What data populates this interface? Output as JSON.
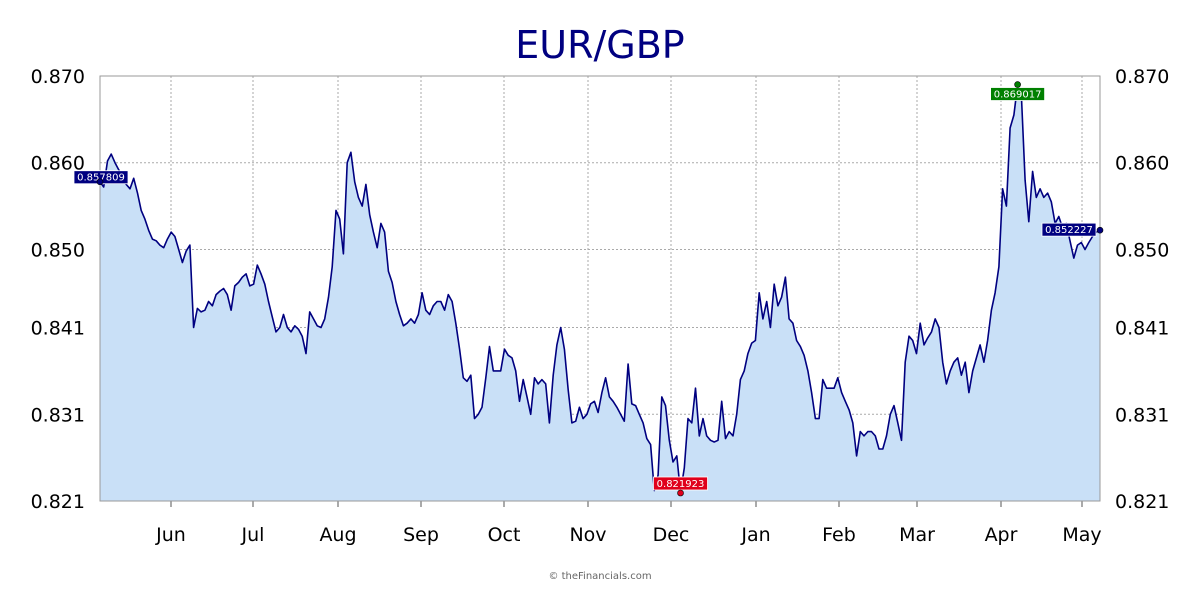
{
  "chart_data": {
    "type": "area",
    "title": "EUR/GBP",
    "xlabel": "",
    "ylabel": "",
    "x_tick_labels": [
      "Jun",
      "Jul",
      "Aug",
      "Sep",
      "Oct",
      "Nov",
      "Dec",
      "Jan",
      "Feb",
      "Mar",
      "Apr",
      "May"
    ],
    "y_tick_labels": [
      "0.870",
      "0.860",
      "0.850",
      "0.841",
      "0.831",
      "0.821"
    ],
    "y_ticks": [
      0.87,
      0.86,
      0.85,
      0.841,
      0.831,
      0.821
    ],
    "ylim": [
      0.821,
      0.87
    ],
    "grid": true,
    "y_axis_sides": "left and right",
    "series": [
      {
        "values": [
          0.8578,
          0.8572,
          0.8602,
          0.861,
          0.86,
          0.8592,
          0.8585,
          0.8575,
          0.857,
          0.8582,
          0.8565,
          0.8545,
          0.8535,
          0.8522,
          0.8512,
          0.851,
          0.8505,
          0.8502,
          0.8512,
          0.852,
          0.8515,
          0.85,
          0.8485,
          0.8498,
          0.8505,
          0.841,
          0.8432,
          0.8428,
          0.843,
          0.844,
          0.8435,
          0.8448,
          0.8452,
          0.8455,
          0.8448,
          0.843,
          0.8458,
          0.8462,
          0.8468,
          0.8472,
          0.8458,
          0.846,
          0.8482,
          0.8472,
          0.846,
          0.844,
          0.8422,
          0.8405,
          0.841,
          0.8425,
          0.841,
          0.8405,
          0.8412,
          0.8408,
          0.84,
          0.838,
          0.8428,
          0.842,
          0.8412,
          0.841,
          0.842,
          0.8445,
          0.848,
          0.8545,
          0.8535,
          0.8495,
          0.86,
          0.8612,
          0.8578,
          0.856,
          0.855,
          0.8575,
          0.854,
          0.852,
          0.8502,
          0.853,
          0.852,
          0.8475,
          0.8462,
          0.844,
          0.8425,
          0.8412,
          0.8415,
          0.842,
          0.8415,
          0.8425,
          0.845,
          0.843,
          0.8425,
          0.8435,
          0.844,
          0.844,
          0.843,
          0.8448,
          0.844,
          0.8415,
          0.8385,
          0.8352,
          0.8348,
          0.8355,
          0.8305,
          0.831,
          0.8318,
          0.8352,
          0.8388,
          0.836,
          0.836,
          0.836,
          0.8385,
          0.8378,
          0.8375,
          0.836,
          0.8325,
          0.835,
          0.833,
          0.831,
          0.8352,
          0.8345,
          0.835,
          0.8345,
          0.83,
          0.8355,
          0.839,
          0.841,
          0.8385,
          0.8338,
          0.83,
          0.8302,
          0.8318,
          0.8305,
          0.831,
          0.8322,
          0.8325,
          0.8312,
          0.8335,
          0.8352,
          0.833,
          0.8325,
          0.8318,
          0.831,
          0.8302,
          0.8368,
          0.8322,
          0.832,
          0.831,
          0.83,
          0.8282,
          0.8275,
          0.8222,
          0.824,
          0.833,
          0.832,
          0.828,
          0.8255,
          0.8262,
          0.822,
          0.8248,
          0.8305,
          0.83,
          0.834,
          0.8285,
          0.8305,
          0.8285,
          0.828,
          0.8278,
          0.828,
          0.8325,
          0.8282,
          0.829,
          0.8285,
          0.831,
          0.835,
          0.836,
          0.838,
          0.8392,
          0.8395,
          0.845,
          0.842,
          0.844,
          0.841,
          0.846,
          0.8435,
          0.8445,
          0.8468,
          0.842,
          0.8415,
          0.8395,
          0.8388,
          0.8378,
          0.836,
          0.8335,
          0.8305,
          0.8305,
          0.835,
          0.834,
          0.834,
          0.834,
          0.8352,
          0.8335,
          0.8325,
          0.8315,
          0.83,
          0.8262,
          0.829,
          0.8285,
          0.829,
          0.829,
          0.8285,
          0.827,
          0.827,
          0.8285,
          0.831,
          0.832,
          0.83,
          0.828,
          0.837,
          0.84,
          0.8395,
          0.838,
          0.8415,
          0.839,
          0.8398,
          0.8405,
          0.842,
          0.841,
          0.837,
          0.8345,
          0.836,
          0.837,
          0.8375,
          0.8355,
          0.837,
          0.8335,
          0.836,
          0.8375,
          0.839,
          0.837,
          0.8395,
          0.843,
          0.845,
          0.848,
          0.857,
          0.855,
          0.864,
          0.8655,
          0.869,
          0.868,
          0.858,
          0.8532,
          0.859,
          0.856,
          0.857,
          0.856,
          0.8565,
          0.8555,
          0.853,
          0.8538,
          0.8525,
          0.853,
          0.851,
          0.849,
          0.8505,
          0.8508,
          0.85,
          0.8508,
          0.8515,
          0.852,
          0.8522
        ]
      }
    ],
    "markers": [
      {
        "label": "0.857809",
        "value": 0.857809,
        "kind": "start"
      },
      {
        "label": "0.821923",
        "value": 0.821923,
        "kind": "low"
      },
      {
        "label": "0.869017",
        "value": 0.869017,
        "kind": "high"
      },
      {
        "label": "0.852227",
        "value": 0.852227,
        "kind": "last"
      }
    ]
  },
  "credit": "© theFinancials.com",
  "colors": {
    "line": "#000080",
    "area_fill": "#c9e0f7",
    "grid": "#aaaaaa",
    "start_tag": "#000080",
    "last_tag": "#000080",
    "low_tag": "#e0001b",
    "high_tag": "#008000"
  }
}
